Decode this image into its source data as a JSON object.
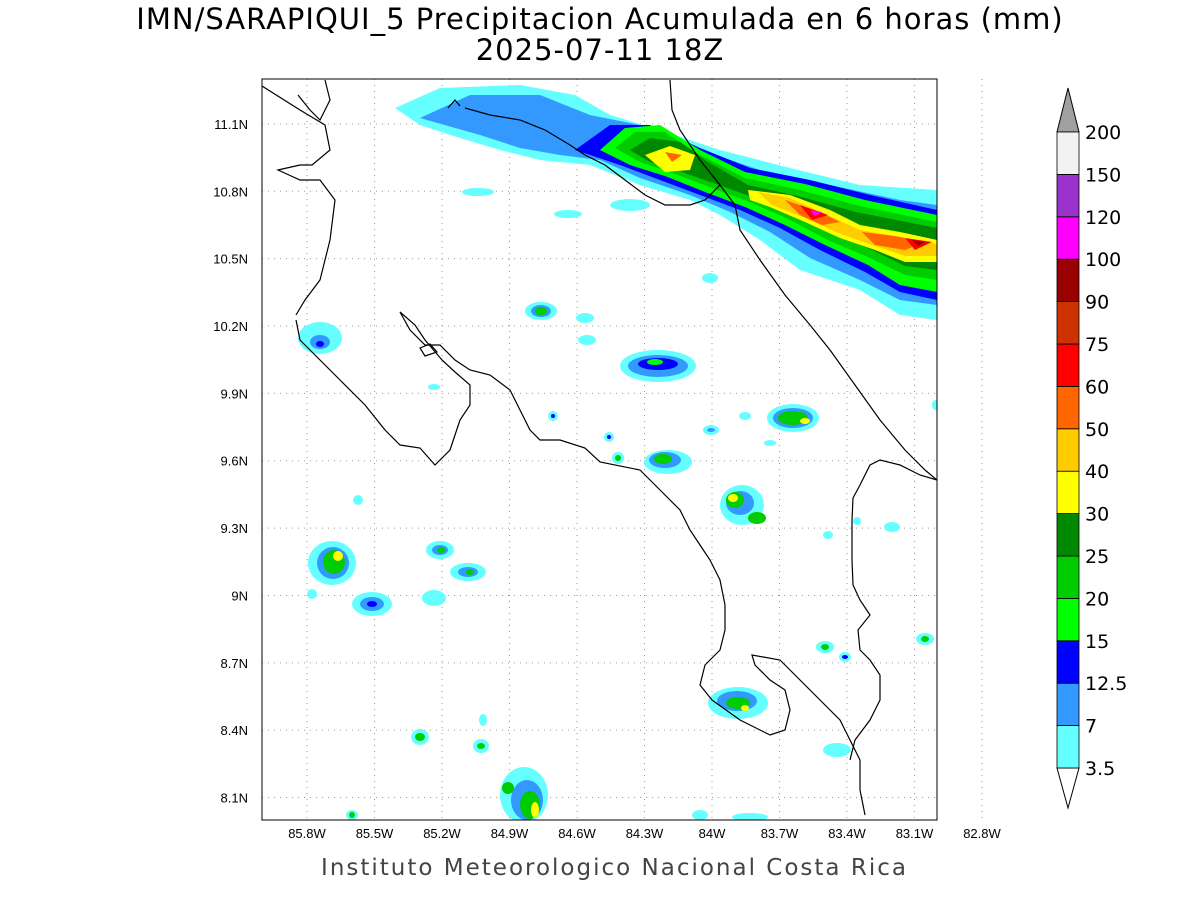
{
  "title": {
    "line1": "IMN/SARAPIQUI_5 Precipitacion Acumulada en 6 horas (mm)",
    "line2": "2025-07-11 18Z"
  },
  "credit": "Instituto Meteorologico Nacional Costa Rica",
  "axes": {
    "lon_range": [
      -86.0,
      -83.0
    ],
    "lat_range": [
      8.0,
      11.3
    ],
    "lon_labels": [
      "85.8W",
      "85.5W",
      "85.2W",
      "84.9W",
      "84.6W",
      "84.3W",
      "84W",
      "83.7W",
      "83.4W",
      "83.1W",
      "82.8W"
    ],
    "lat_labels": [
      "11.1N",
      "10.8N",
      "10.5N",
      "10.2N",
      "9.9N",
      "9.6N",
      "9.3N",
      "9N",
      "8.7N",
      "8.4N",
      "8.1N"
    ],
    "grid": "dotted"
  },
  "colorbar": {
    "levels": [
      "3.5",
      "7",
      "12.5",
      "15",
      "20",
      "25",
      "30",
      "40",
      "50",
      "60",
      "75",
      "90",
      "100",
      "120",
      "150",
      "200"
    ],
    "colors": [
      "#66ffff",
      "#3399ff",
      "#0000ff",
      "#00ff00",
      "#00cc00",
      "#008800",
      "#ffff00",
      "#ffcc00",
      "#ff6600",
      "#ff0000",
      "#cc3300",
      "#990000",
      "#ff00ff",
      "#9933cc",
      "#f2f2f2",
      "#a0a0a0"
    ]
  }
}
